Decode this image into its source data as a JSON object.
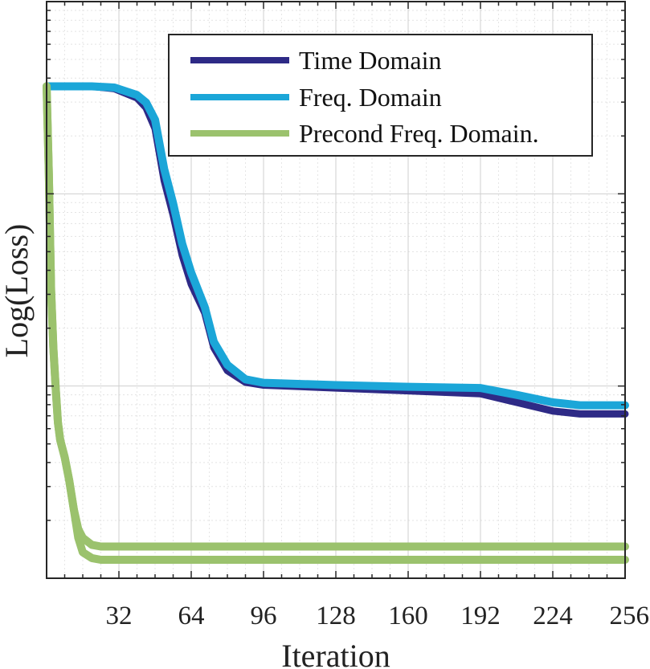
{
  "chart_data": {
    "type": "line",
    "title": "",
    "xlabel": "Iteration",
    "ylabel": "Log(Loss)",
    "x_ticks": [
      "32",
      "64",
      "96",
      "128",
      "160",
      "192",
      "224",
      "256"
    ],
    "xlim": [
      0,
      256
    ],
    "ylim": [
      0,
      1
    ],
    "y_scale": "log",
    "y_tick_labels_shown": false,
    "grid": true,
    "minor_grid": true,
    "legend_position": "top-right",
    "series": [
      {
        "name": "Time Domain",
        "color": "#2e2a86",
        "points": [
          [
            0,
            0.853
          ],
          [
            20,
            0.853
          ],
          [
            30,
            0.849
          ],
          [
            40,
            0.833
          ],
          [
            44,
            0.816
          ],
          [
            48,
            0.78
          ],
          [
            52,
            0.69
          ],
          [
            56,
            0.63
          ],
          [
            60,
            0.56
          ],
          [
            64,
            0.51
          ],
          [
            70,
            0.46
          ],
          [
            74,
            0.4
          ],
          [
            80,
            0.36
          ],
          [
            88,
            0.34
          ],
          [
            96,
            0.335
          ],
          [
            128,
            0.33
          ],
          [
            160,
            0.325
          ],
          [
            192,
            0.32
          ],
          [
            208,
            0.305
          ],
          [
            224,
            0.29
          ],
          [
            236,
            0.285
          ],
          [
            256,
            0.285
          ]
        ]
      },
      {
        "name": "Freq. Domain",
        "color": "#1ba6d8",
        "points": [
          [
            0,
            0.853
          ],
          [
            20,
            0.853
          ],
          [
            30,
            0.851
          ],
          [
            40,
            0.838
          ],
          [
            44,
            0.825
          ],
          [
            48,
            0.795
          ],
          [
            52,
            0.71
          ],
          [
            56,
            0.65
          ],
          [
            60,
            0.58
          ],
          [
            64,
            0.53
          ],
          [
            70,
            0.47
          ],
          [
            74,
            0.41
          ],
          [
            80,
            0.37
          ],
          [
            88,
            0.345
          ],
          [
            96,
            0.339
          ],
          [
            128,
            0.335
          ],
          [
            160,
            0.332
          ],
          [
            192,
            0.33
          ],
          [
            208,
            0.318
          ],
          [
            224,
            0.305
          ],
          [
            236,
            0.3
          ],
          [
            256,
            0.3
          ]
        ]
      },
      {
        "name": "Precond Freq. Domain.",
        "color": "#9bc26d",
        "points": [
          [
            0,
            0.853
          ],
          [
            1,
            0.7
          ],
          [
            2,
            0.5
          ],
          [
            3,
            0.4
          ],
          [
            4,
            0.33
          ],
          [
            5,
            0.27
          ],
          [
            6,
            0.24
          ],
          [
            8,
            0.21
          ],
          [
            10,
            0.17
          ],
          [
            12,
            0.12
          ],
          [
            14,
            0.07
          ],
          [
            16,
            0.045
          ],
          [
            20,
            0.035
          ],
          [
            24,
            0.032
          ],
          [
            256,
            0.032
          ]
        ]
      },
      {
        "name": "",
        "color": "#9bc26d",
        "points": [
          [
            0,
            0.853
          ],
          [
            1,
            0.7
          ],
          [
            2,
            0.5
          ],
          [
            3,
            0.4
          ],
          [
            4,
            0.33
          ],
          [
            5,
            0.27
          ],
          [
            6,
            0.24
          ],
          [
            8,
            0.21
          ],
          [
            10,
            0.17
          ],
          [
            12,
            0.12
          ],
          [
            14,
            0.085
          ],
          [
            16,
            0.07
          ],
          [
            20,
            0.058
          ],
          [
            24,
            0.055
          ],
          [
            256,
            0.055
          ]
        ]
      }
    ]
  }
}
